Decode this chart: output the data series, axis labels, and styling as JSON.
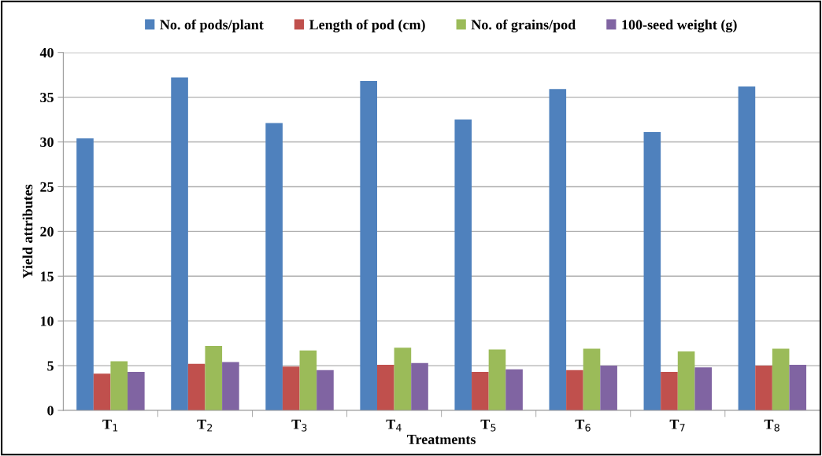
{
  "chart_data": {
    "type": "bar",
    "xlabel": "Treatments",
    "ylabel": "Yield attributes",
    "categories": [
      "T$_{1}$",
      "T$_{2}$",
      "T$_{3}$",
      "T$_{4}$",
      "T$_{5}$",
      "T$_{6}$",
      "T$_{7}$",
      "T$_{8}$"
    ],
    "series": [
      {
        "name": "No. of pods/plant",
        "color": "#4f81bd",
        "values": [
          30.4,
          37.2,
          32.1,
          36.8,
          32.5,
          35.9,
          31.1,
          36.2
        ]
      },
      {
        "name": "Length of pod (cm)",
        "color": "#c0504d",
        "values": [
          4.1,
          5.2,
          4.9,
          5.1,
          4.3,
          4.5,
          4.3,
          5.0
        ]
      },
      {
        "name": "No. of grains/pod",
        "color": "#9bbb59",
        "values": [
          5.5,
          7.2,
          6.7,
          7.0,
          6.8,
          6.9,
          6.6,
          6.9
        ]
      },
      {
        "name": "100-seed weight (g)",
        "color": "#8064a2",
        "values": [
          4.3,
          5.4,
          4.5,
          5.3,
          4.6,
          5.0,
          4.8,
          5.1
        ]
      }
    ],
    "ylim": [
      0,
      40
    ],
    "yticks": [
      0,
      5,
      10,
      15,
      20,
      25,
      30,
      35,
      40
    ],
    "grid": "y",
    "legend": "top"
  }
}
